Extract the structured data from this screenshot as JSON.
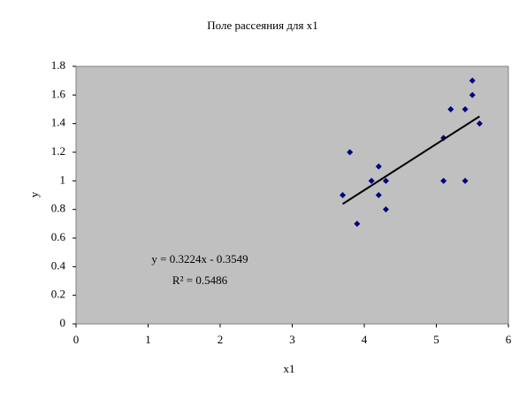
{
  "chart_data": {
    "type": "scatter",
    "title": "Поле рассеяния для x1",
    "x_label": "x1",
    "y_label": "y",
    "series": [
      {
        "name": "y",
        "color": "#000080",
        "x": [
          3.7,
          3.8,
          3.9,
          4.1,
          4.2,
          4.2,
          4.3,
          4.3,
          5.1,
          5.1,
          5.2,
          5.4,
          5.4,
          5.5,
          5.5,
          5.6
        ],
        "values": [
          0.9,
          1.2,
          0.7,
          1.0,
          1.1,
          0.9,
          1.0,
          0.8,
          1.3,
          1.0,
          1.5,
          1.5,
          1.0,
          1.7,
          1.6,
          1.4
        ]
      }
    ],
    "trendline": {
      "slope": 0.3224,
      "intercept": -0.3549,
      "color": "#000000",
      "label": "y = 0.3224x - 0.3549",
      "r2_label": "R² = 0.5486"
    },
    "xlim": [
      0,
      6
    ],
    "xticks": [
      0,
      1,
      2,
      3,
      4,
      5,
      6
    ],
    "ylim": [
      0,
      1.8
    ],
    "yticks": [
      0,
      0.2,
      0.4,
      0.6,
      0.8,
      1,
      1.2,
      1.4,
      1.6,
      1.8
    ],
    "plot_background": "#c0c0c0",
    "grid": false
  }
}
